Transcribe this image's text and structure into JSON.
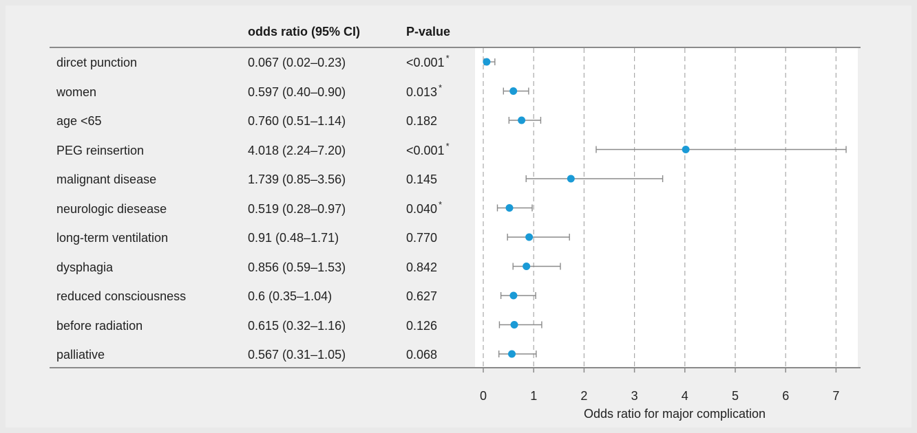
{
  "table": {
    "headers": [
      "",
      "odds ratio (95% CI)",
      "P-value"
    ],
    "rows": [
      {
        "label": "dircet punction",
        "or_text": "0.067 (0.02–0.23)",
        "p_text": "<0.001",
        "sig": "*"
      },
      {
        "label": "women",
        "or_text": "0.597 (0.40–0.90)",
        "p_text": "0.013",
        "sig": "*"
      },
      {
        "label": "age <65",
        "or_text": "0.760 (0.51–1.14)",
        "p_text": "0.182",
        "sig": ""
      },
      {
        "label": "PEG reinsertion",
        "or_text": "4.018 (2.24–7.20)",
        "p_text": "<0.001",
        "sig": "*"
      },
      {
        "label": "malignant disease",
        "or_text": "1.739 (0.85–3.56)",
        "p_text": "0.145",
        "sig": ""
      },
      {
        "label": "neurologic diesease",
        "or_text": "0.519 (0.28–0.97)",
        "p_text": "0.040",
        "sig": "*"
      },
      {
        "label": "long-term ventilation",
        "or_text": "0.91 (0.48–1.71)",
        "p_text": "0.770",
        "sig": ""
      },
      {
        "label": "dysphagia",
        "or_text": "0.856 (0.59–1.53)",
        "p_text": "0.842",
        "sig": ""
      },
      {
        "label": "reduced consciousness",
        "or_text": "0.6 (0.35–1.04)",
        "p_text": "0.627",
        "sig": ""
      },
      {
        "label": "before radiation",
        "or_text": "0.615 (0.32–1.16)",
        "p_text": "0.126",
        "sig": ""
      },
      {
        "label": "palliative",
        "or_text": "0.567 (0.31–1.05)",
        "p_text": "0.068",
        "sig": ""
      }
    ]
  },
  "chart_data": {
    "type": "scatter",
    "subtype": "forest-plot",
    "title": "",
    "xlabel": "Odds ratio for major complication",
    "ylabel": "",
    "xlim": [
      0,
      7.2
    ],
    "xticks": [
      0,
      1,
      2,
      3,
      4,
      5,
      6,
      7
    ],
    "grid": "vertical-dashed",
    "categories": [
      "dircet punction",
      "women",
      "age <65",
      "PEG reinsertion",
      "malignant disease",
      "neurologic diesease",
      "long-term ventilation",
      "dysphagia",
      "reduced consciousness",
      "before radiation",
      "palliative"
    ],
    "values": [
      0.067,
      0.597,
      0.76,
      4.018,
      1.739,
      0.519,
      0.91,
      0.856,
      0.6,
      0.615,
      0.567
    ],
    "ci_low": [
      0.02,
      0.4,
      0.51,
      2.24,
      0.85,
      0.28,
      0.48,
      0.59,
      0.35,
      0.32,
      0.31
    ],
    "ci_high": [
      0.23,
      0.9,
      1.14,
      7.2,
      3.56,
      0.97,
      1.71,
      1.53,
      1.04,
      1.16,
      1.05
    ],
    "point_color": "#1a9ad6",
    "ci_color": "#8a8a8a",
    "grid_color": "#a9a9a9"
  }
}
